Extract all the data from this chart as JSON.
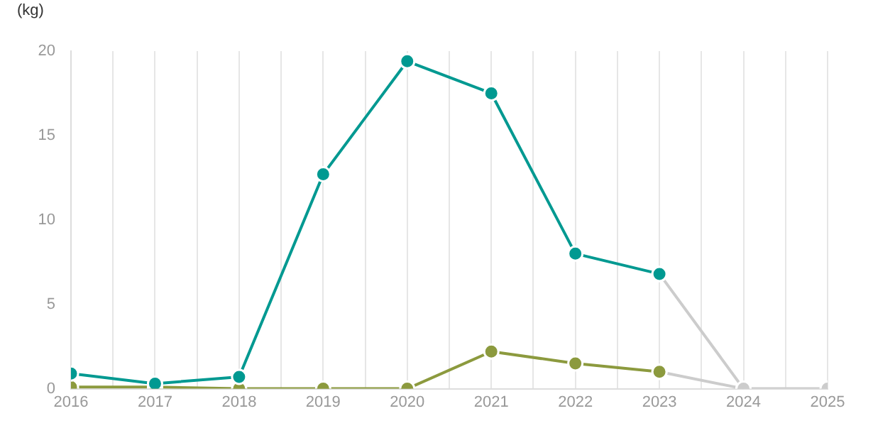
{
  "chart_data": {
    "type": "line",
    "ylabel": "(kg)",
    "x": [
      2016,
      2017,
      2018,
      2019,
      2020,
      2021,
      2022,
      2023
    ],
    "series": [
      {
        "color": "#009991",
        "values": [
          0.9,
          0.3,
          0.7,
          12.7,
          19.4,
          17.5,
          8.0,
          6.8
        ]
      },
      {
        "color": "#8c9a3e",
        "values": [
          0.1,
          0.1,
          0,
          0,
          0,
          2.2,
          1.5,
          1.0
        ]
      },
      {
        "color": "#cccccc",
        "x": [
          2023,
          2024,
          2025
        ],
        "values": [
          6.8,
          0,
          0
        ]
      },
      {
        "color": "#cccccc",
        "x": [
          2023,
          2024
        ],
        "values": [
          1.0,
          0
        ]
      }
    ],
    "xlim": [
      2016,
      2025
    ],
    "xticks": [
      2016,
      {
        "value": 2016.5,
        "label": null
      },
      2017,
      {
        "value": 2017.5,
        "label": null
      },
      2018,
      {
        "value": 2018.5,
        "label": null
      },
      2019,
      {
        "value": 2019.5,
        "label": null
      },
      2020,
      {
        "value": 2020.5,
        "label": null
      },
      2021,
      {
        "value": 2021.5,
        "label": null
      },
      2022,
      {
        "value": 2022.5,
        "label": null
      },
      2023,
      {
        "value": 2023.5,
        "label": null
      },
      2024,
      {
        "value": 2024.5,
        "label": null
      },
      2025
    ],
    "ylim": [
      0,
      20
    ],
    "yticks": [
      0,
      5,
      10,
      15,
      20
    ],
    "grid": "x",
    "marker": "circle",
    "line_style": "solid",
    "legend": false
  }
}
